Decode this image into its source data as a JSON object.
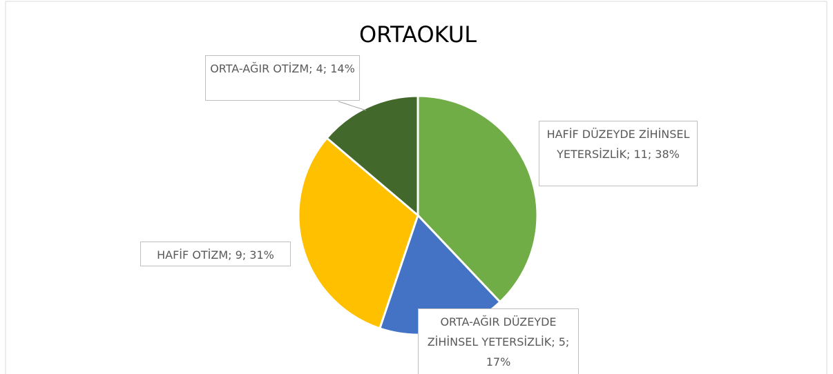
{
  "chart_data": {
    "type": "pie",
    "title": "ORTAOKUL",
    "categories": [
      "HAFİF DÜZEYDE ZİHİNSEL YETERSİZLİK",
      "ORTA-AĞIR DÜZEYDE ZİHİNSEL YETERSİZLİK",
      "HAFİF OTİZM",
      "ORTA-AĞIR OTİZM"
    ],
    "values": [
      11,
      5,
      9,
      4
    ],
    "value_labels": [
      "HAFİF DÜZEYDE ZİHİNSEL YETERSİZLİK; 11; 38%",
      "ORTA-AĞIR DÜZEYDE ZİHİNSEL YETERSİZLİK; 5; 17%",
      "HAFİF OTİZM; 9; 31%",
      "ORTA-AĞIR OTİZM; 4; 14%"
    ],
    "colors": [
      "#70ad47",
      "#4472c4",
      "#ffc000",
      "#43682b"
    ]
  }
}
